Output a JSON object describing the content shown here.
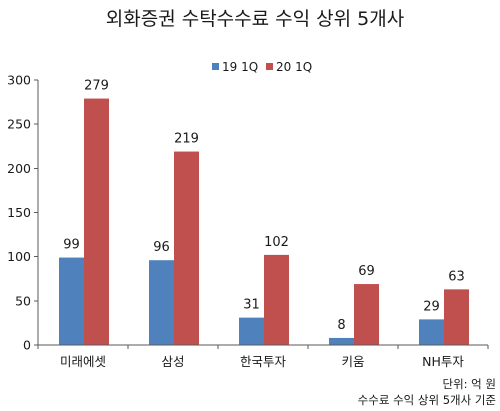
{
  "chart_data": {
    "type": "bar",
    "title": "외화증권 수탁수수료 수익 상위 5개사",
    "categories": [
      "미래에셋",
      "삼성",
      "한국투자",
      "키움",
      "NH투자"
    ],
    "series": [
      {
        "name": "19 1Q",
        "values": [
          99,
          96,
          31,
          8,
          29
        ],
        "color": "#4F81BD"
      },
      {
        "name": "20 1Q",
        "values": [
          279,
          219,
          102,
          69,
          63
        ],
        "color": "#C0504D"
      }
    ],
    "ylim": [
      0,
      300
    ],
    "yticks": [
      0,
      50,
      100,
      150,
      200,
      250,
      300
    ],
    "grid": false,
    "legend": "top-center",
    "data_labels": true,
    "notes": [
      "단위: 억 원",
      "수수료 수익 상위 5개사 기준"
    ]
  }
}
